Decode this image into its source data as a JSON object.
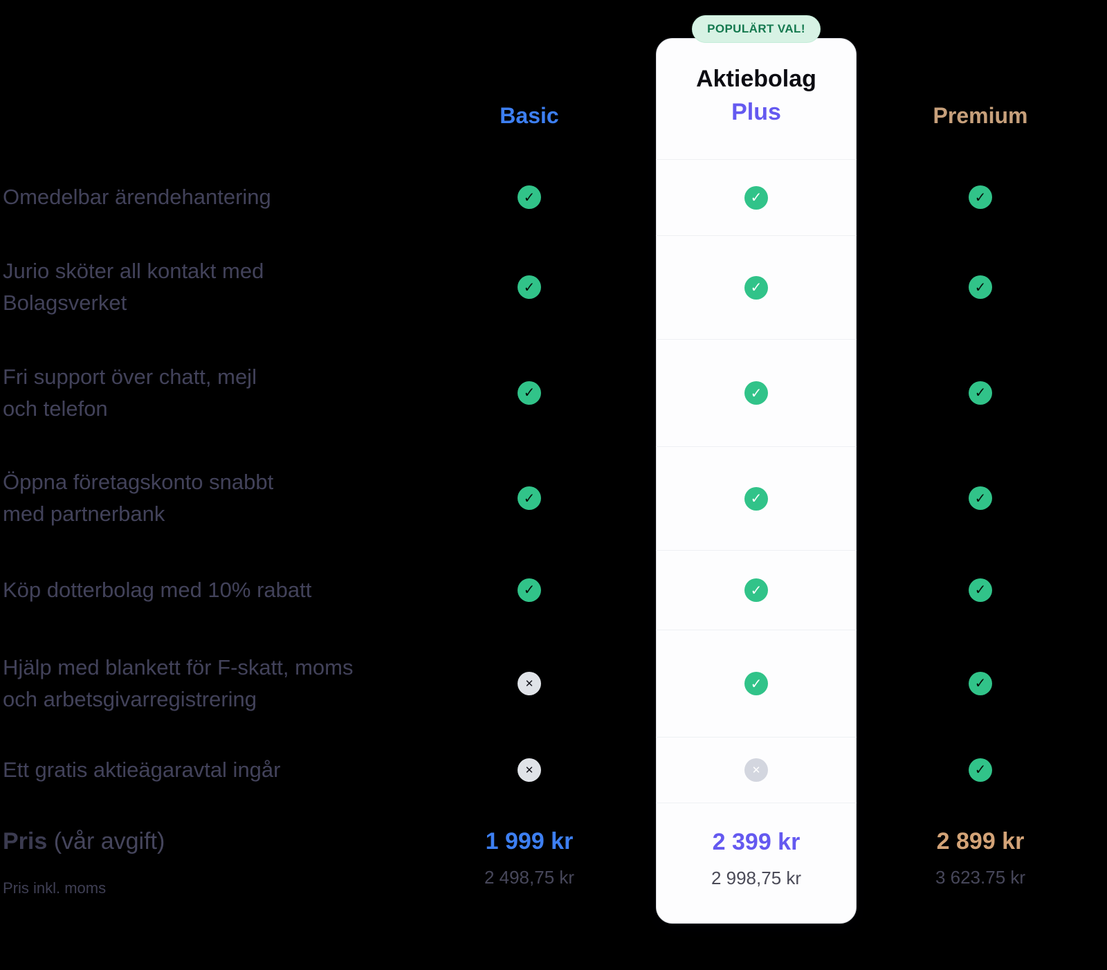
{
  "plans": [
    {
      "id": "basic",
      "name": "Basic",
      "price": "1 999 kr",
      "price_incl_vat": "2 498,75 kr"
    },
    {
      "id": "plus",
      "badge": "POPULÄRT VAL!",
      "name_line1": "Aktiebolag",
      "name_line2": "Plus",
      "price": "2 399 kr",
      "price_incl_vat": "2 998,75 kr"
    },
    {
      "id": "premium",
      "name": "Premium",
      "price": "2 899 kr",
      "price_incl_vat": "3 623.75 kr"
    }
  ],
  "features": [
    {
      "label": "Omedelbar ärendehantering",
      "availability": {
        "basic": "check",
        "plus": "check",
        "premium": "check"
      }
    },
    {
      "label": "Jurio sköter all kontakt med\nBolagsverket",
      "availability": {
        "basic": "check",
        "plus": "check",
        "premium": "check"
      }
    },
    {
      "label": "Fri support över chatt, mejl\noch telefon",
      "availability": {
        "basic": "check",
        "plus": "check",
        "premium": "check"
      }
    },
    {
      "label": "Öppna företagskonto snabbt\nmed partnerbank",
      "availability": {
        "basic": "check",
        "plus": "check",
        "premium": "check"
      }
    },
    {
      "label": "Köp dotterbolag med 10% rabatt",
      "availability": {
        "basic": "check",
        "plus": "check",
        "premium": "check"
      }
    },
    {
      "label": "Hjälp med blankett för F-skatt, moms\noch arbetsgivarregistrering",
      "availability": {
        "basic": "cross",
        "plus": "check",
        "premium": "check"
      }
    },
    {
      "label": "Ett gratis aktieägaravtal ingår",
      "availability": {
        "basic": "cross",
        "plus": "cross",
        "premium": "check"
      }
    }
  ],
  "price_row": {
    "label_bold": "Pris",
    "label_regular": " (vår avgift)",
    "sub_label": "Pris inkl. moms"
  },
  "colors": {
    "basic_accent": "#3d7ff2",
    "plus_accent": "#6459f0",
    "premium_accent": "#c7a07b",
    "check_green": "#31c389",
    "badge_bg": "#d7f2e4",
    "badge_text": "#14794f",
    "card_bg": "#fdfdfe"
  }
}
